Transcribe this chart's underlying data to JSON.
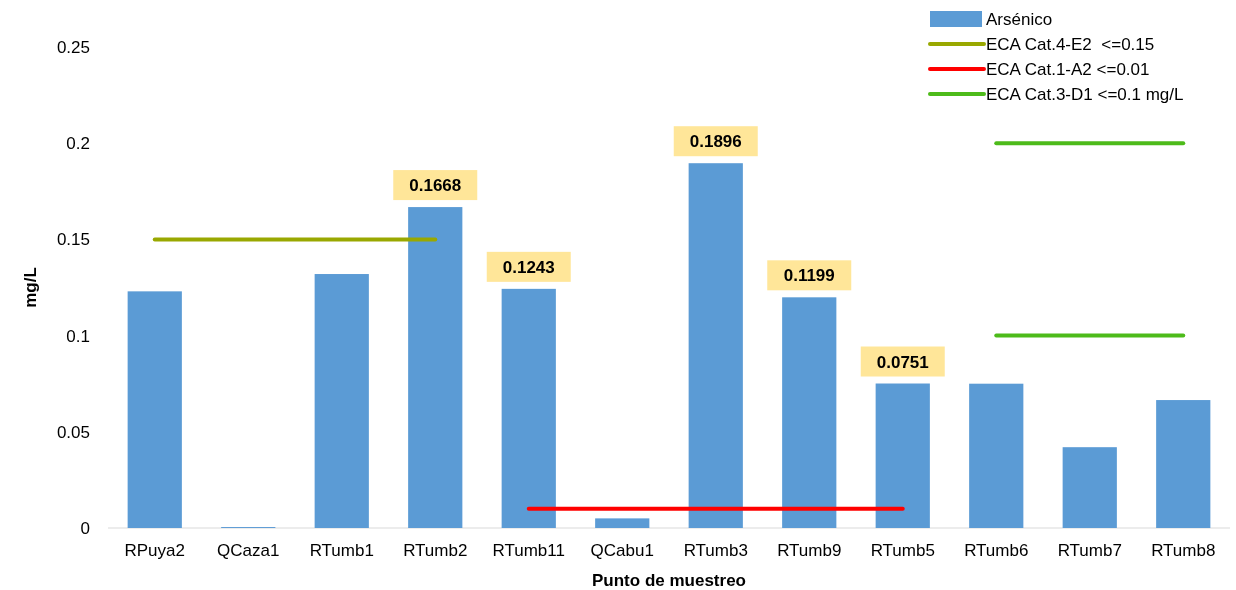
{
  "chart_data": {
    "type": "bar",
    "xlabel": "Punto de muestreo",
    "ylabel": "mg/L",
    "categories": [
      "RPuya2",
      "QCaza1",
      "RTumb1",
      "RTumb2",
      "RTumb11",
      "QCabu1",
      "RTumb3",
      "RTumb9",
      "RTumb5",
      "RTumb6",
      "RTumb7",
      "RTumb8"
    ],
    "ylim": [
      0,
      0.25
    ],
    "yticks": [
      0,
      0.05,
      0.1,
      0.15,
      0.2,
      0.25
    ],
    "grid": false,
    "legend": "top right",
    "series": [
      {
        "name": "Arsénico",
        "color": "#5b9bd5",
        "values": [
          0.123,
          0.0005,
          0.132,
          0.1668,
          0.1243,
          0.005,
          0.1896,
          0.1199,
          0.0751,
          0.075,
          0.042,
          0.0665
        ],
        "value_labels": [
          null,
          null,
          null,
          "0.1668",
          "0.1243",
          null,
          "0.1896",
          "0.1199",
          "0.0751",
          null,
          null,
          null
        ]
      },
      {
        "name": "ECA Cat.4-E2  <=0.15",
        "type": "line",
        "color": "#99a800",
        "values": [
          0.15,
          0.15,
          0.15,
          0.15,
          null,
          null,
          null,
          null,
          null,
          null,
          null,
          null
        ]
      },
      {
        "name": "ECA Cat.1-A2 <=0.01",
        "type": "line",
        "color": "#ff0000",
        "values": [
          null,
          null,
          null,
          null,
          0.01,
          0.01,
          0.01,
          0.01,
          0.01,
          null,
          null,
          null
        ]
      },
      {
        "name": "ECA Cat.3-D1 <=0.1 mg/L",
        "type": "line",
        "color": "#4dbb1a",
        "values": [
          null,
          null,
          null,
          null,
          null,
          null,
          null,
          null,
          null,
          0.1,
          0.1,
          0.1
        ]
      },
      {
        "type": "line",
        "color": "#4dbb1a",
        "values": [
          null,
          null,
          null,
          null,
          null,
          null,
          null,
          null,
          null,
          0.2,
          0.2,
          0.2
        ]
      }
    ]
  }
}
